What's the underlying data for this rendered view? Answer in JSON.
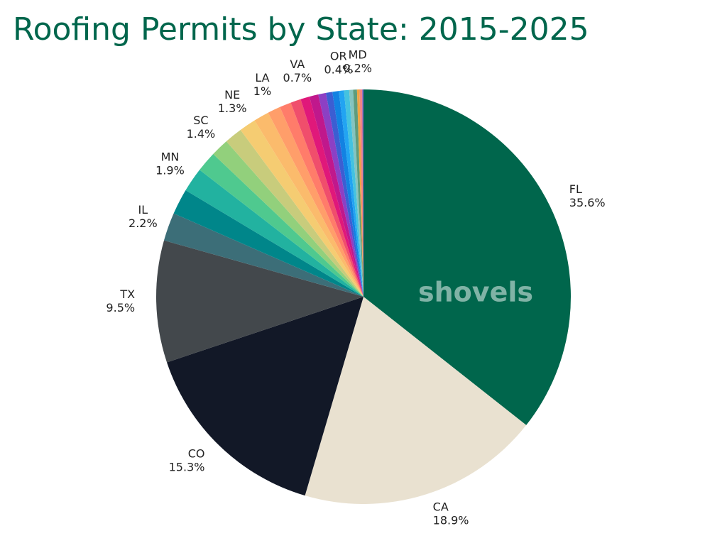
{
  "chart_data": {
    "type": "pie",
    "title": "Roofing Permits by State: 2015-2025",
    "watermark": "shovels",
    "categories": [
      "FL",
      "CA",
      "CO",
      "TX",
      "IL",
      null,
      "MN",
      null,
      "SC",
      null,
      "NE",
      null,
      "LA",
      null,
      null,
      "VA",
      null,
      null,
      null,
      null,
      "OR",
      null,
      null,
      null,
      "MD",
      null,
      null
    ],
    "values": [
      35.6,
      18.9,
      15.3,
      9.5,
      2.2,
      2.0,
      1.9,
      1.6,
      1.4,
      1.4,
      1.3,
      1.2,
      1.0,
      0.9,
      0.8,
      0.7,
      0.7,
      0.6,
      0.5,
      0.5,
      0.4,
      0.4,
      0.3,
      0.3,
      0.2,
      0.2,
      0.1
    ],
    "value_labels": [
      "35.6%",
      "18.9%",
      "15.3%",
      "9.5%",
      "2.2%",
      null,
      "1.9%",
      null,
      "1.4%",
      null,
      "1.3%",
      null,
      "1%",
      null,
      null,
      "0.7%",
      null,
      null,
      null,
      null,
      "0.4%",
      null,
      null,
      null,
      "0.2%",
      null,
      null
    ],
    "colors": [
      "#00664c",
      "#e9e1d0",
      "#121827",
      "#43484c",
      "#3c6e78",
      "#00868a",
      "#22b2a0",
      "#4fc98f",
      "#92d07c",
      "#c8cc7c",
      "#f5cc72",
      "#fbbb6c",
      "#ff9e6a",
      "#ff7c6a",
      "#f04e6c",
      "#e0187a",
      "#c0188c",
      "#8c40c4",
      "#3c5ed2",
      "#1282e2",
      "#22a4f2",
      "#44c2e0",
      "#84c4c0",
      "#5e9c7c",
      "#f0a442",
      "#f08484",
      "#7e60c2"
    ]
  }
}
